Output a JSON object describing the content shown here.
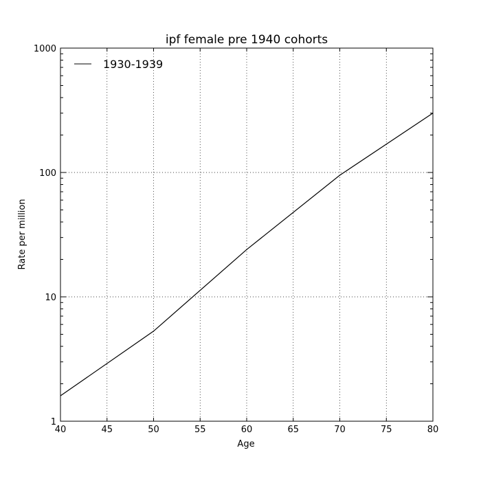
{
  "chart_data": {
    "type": "line",
    "title": "ipf female pre 1940 cohorts",
    "xlabel": "Age",
    "ylabel": "Rate per million",
    "x_ticks": [
      "40",
      "45",
      "50",
      "55",
      "60",
      "65",
      "70",
      "75",
      "80"
    ],
    "y_ticks": [
      "1",
      "10",
      "100",
      "1000"
    ],
    "xlim": [
      40,
      80
    ],
    "ylim": [
      1,
      1000
    ],
    "y_scale": "log",
    "grid": true,
    "legend_position": "top-left",
    "series": [
      {
        "name": "1930-1939",
        "color": "#000000",
        "x": [
          40,
          50,
          60,
          70,
          80
        ],
        "y": [
          1.6,
          5.3,
          24,
          95,
          300
        ]
      }
    ]
  }
}
